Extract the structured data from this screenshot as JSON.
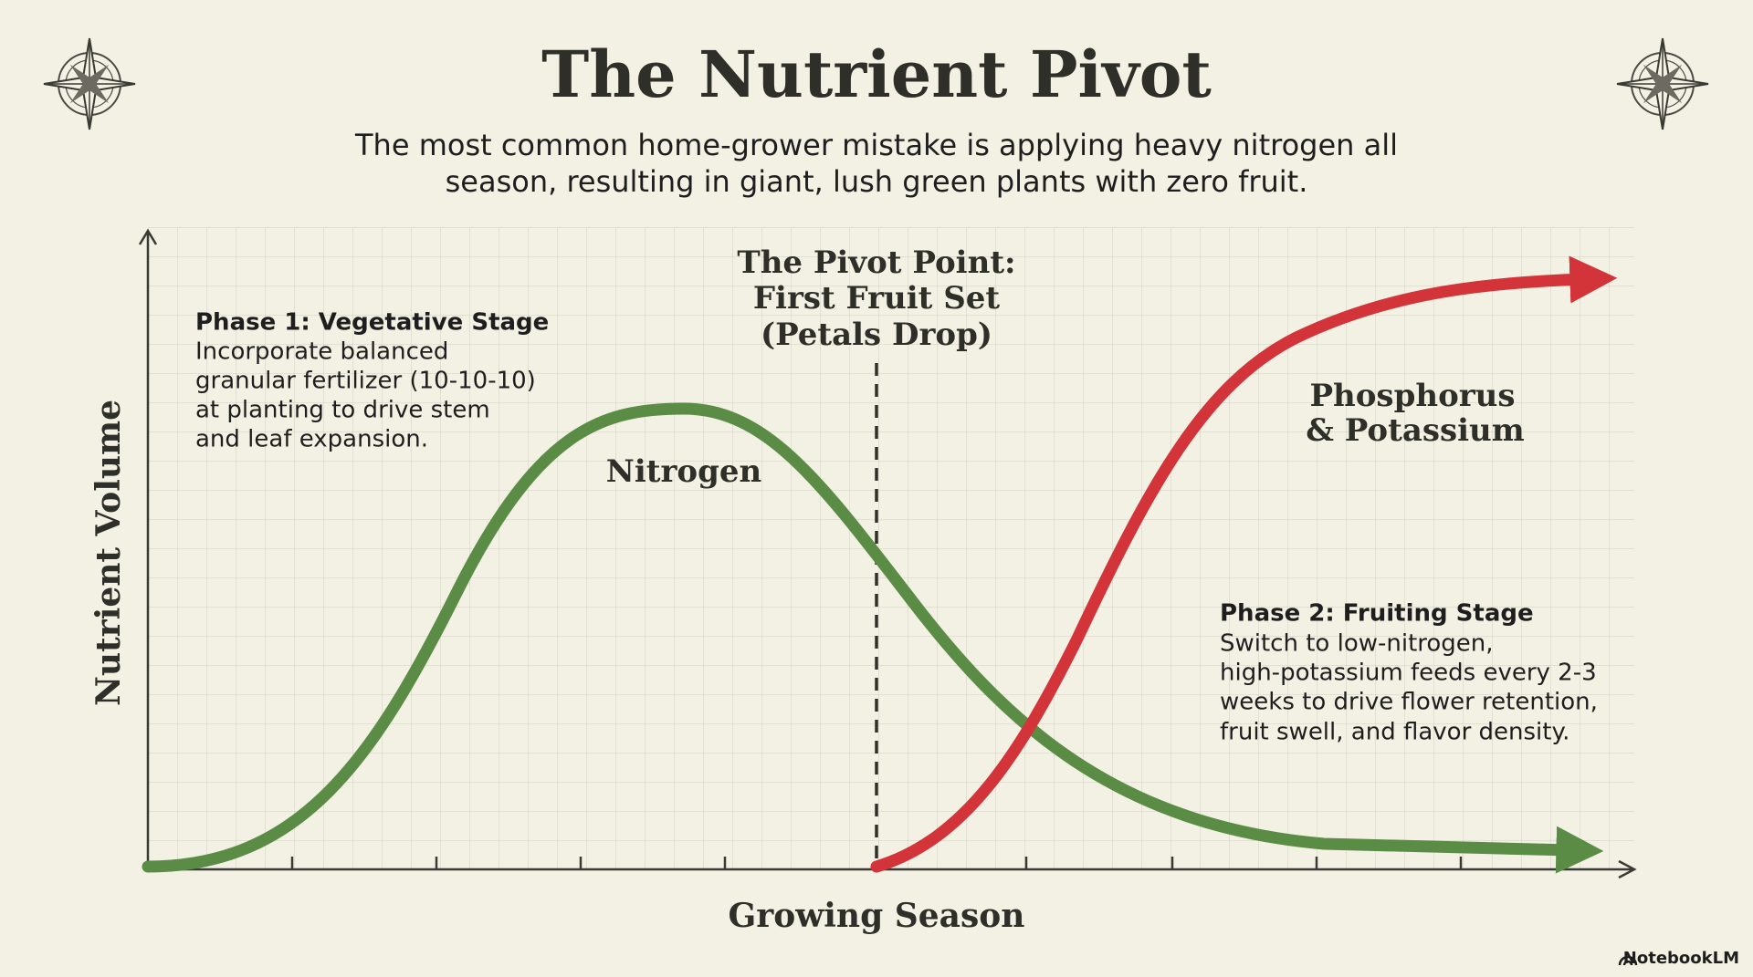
{
  "header": {
    "title": "The Nutrient Pivot",
    "subtitle": [
      "The most common home-grower mistake is applying heavy nitrogen all",
      "season, resulting in giant, lush green plants with zero fruit."
    ]
  },
  "graph": {
    "y_axis_label": "Nutrient Volume",
    "x_axis_label": "Growing Season",
    "pivot": [
      "The Pivot Point:",
      "First Fruit Set",
      "(Petals Drop)"
    ],
    "nitrogen_label": "Nitrogen",
    "pk_label": [
      "Phosphorus",
      "& Potassium"
    ],
    "phase1": {
      "heading": "Phase 1: Vegetative Stage",
      "body": [
        "Incorporate balanced",
        "granular fertilizer (10-10-10)",
        "at planting to drive stem",
        "and leaf expansion."
      ]
    },
    "phase2": {
      "heading": "Phase 2: Fruiting Stage",
      "body": [
        "Switch to low-nitrogen,",
        "high-potassium feeds every 2-3",
        "weeks to drive flower retention,",
        "fruit swell, and flavor density."
      ]
    }
  },
  "footer": {
    "brand": "NotebookLM"
  }
}
